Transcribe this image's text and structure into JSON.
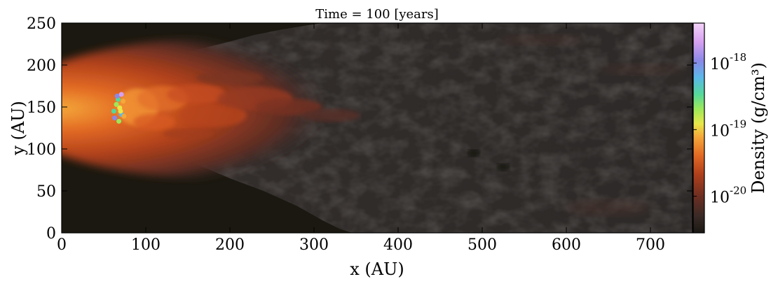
{
  "chart_data": {
    "type": "heatmap",
    "title": "Time = 100 [years]",
    "xlabel": "x  (AU)",
    "ylabel": "y  (AU)",
    "xlim": [
      0,
      750
    ],
    "ylim": [
      0,
      250
    ],
    "xticks": [
      "0",
      "100",
      "200",
      "300",
      "400",
      "500",
      "600",
      "700"
    ],
    "yticks": [
      "0",
      "50",
      "100",
      "150",
      "200",
      "250"
    ],
    "colorbar": {
      "label": "Density  (g/cm³)",
      "scale": "log",
      "ticks": [
        {
          "base": "10",
          "exp": "-20",
          "value": -20
        },
        {
          "base": "10",
          "exp": "-19",
          "value": -19
        },
        {
          "base": "10",
          "exp": "-18",
          "value": -18
        }
      ],
      "range_log10": [
        -20.55,
        -17.4
      ],
      "colors": [
        "#1a1813",
        "#3a2a26",
        "#6a2e22",
        "#b0401c",
        "#e36a24",
        "#f4a93a",
        "#e8e84a",
        "#9de85a",
        "#55d89a",
        "#5ab8e8",
        "#8a88e8",
        "#d6a0f0",
        "#f4d4f8"
      ]
    },
    "background_color": "#1a1810",
    "shocked_region_color": "#2e2b29",
    "head_position_au": [
      65,
      145
    ],
    "features": [
      {
        "description_x_au": 490,
        "description_y_au": 95,
        "kind": "dark clump"
      },
      {
        "description_x_au": 525,
        "description_y_au": 78,
        "kind": "dark clump"
      }
    ]
  }
}
